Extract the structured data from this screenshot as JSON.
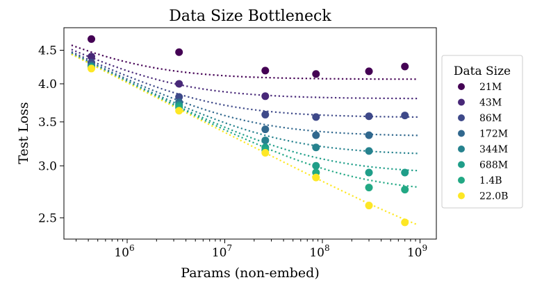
{
  "chart_data": {
    "type": "scatter",
    "title": "Data Size Bottleneck",
    "xlabel": "Params (non-embed)",
    "ylabel": "Test Loss",
    "x_scale": "log",
    "y_scale": "log",
    "xlim": [
      225000,
      1470000000
    ],
    "ylim": [
      2.32,
      4.87
    ],
    "x_ticks": [
      {
        "value": 1000000,
        "base": "10",
        "exp": "6"
      },
      {
        "value": 10000000,
        "base": "10",
        "exp": "7"
      },
      {
        "value": 100000000,
        "base": "10",
        "exp": "8"
      },
      {
        "value": 1000000000,
        "base": "10",
        "exp": "9"
      }
    ],
    "y_ticks": [
      {
        "value": 2.5,
        "label": "2.5"
      },
      {
        "value": 3.0,
        "label": "3.0"
      },
      {
        "value": 3.5,
        "label": "3.5"
      },
      {
        "value": 4.0,
        "label": "4.0"
      },
      {
        "value": 4.5,
        "label": "4.5"
      }
    ],
    "grid": false,
    "legend": {
      "title": "Data Size",
      "placement": "outside-right"
    },
    "x": [
      430000,
      3400000,
      26000000,
      86000000,
      300000000,
      700000000
    ],
    "series": [
      {
        "name": "21M",
        "color": "#440154",
        "values": [
          4.68,
          4.47,
          4.19,
          4.14,
          4.18,
          4.25
        ]
      },
      {
        "name": "43M",
        "color": "#482878",
        "values": [
          4.4,
          4.0,
          3.83,
          null,
          null,
          null
        ]
      },
      {
        "name": "86M",
        "color": "#3e4989",
        "values": [
          4.31,
          3.82,
          3.59,
          3.56,
          3.57,
          3.58
        ]
      },
      {
        "name": "172M",
        "color": "#31688e",
        "values": [
          4.27,
          3.75,
          3.41,
          3.34,
          3.34,
          null
        ]
      },
      {
        "name": "344M",
        "color": "#26828e",
        "values": [
          4.25,
          3.72,
          3.28,
          3.2,
          3.16,
          null
        ]
      },
      {
        "name": "688M",
        "color": "#1f9e89",
        "values": [
          4.24,
          3.7,
          3.2,
          3.0,
          2.93,
          2.93
        ]
      },
      {
        "name": "1.4B",
        "color": "#22a884",
        "values": [
          4.23,
          3.68,
          3.17,
          2.93,
          2.78,
          2.76
        ]
      },
      {
        "name": "22.0B",
        "color": "#fde725",
        "values": [
          4.22,
          3.64,
          3.14,
          2.88,
          2.61,
          2.46
        ]
      }
    ],
    "fit_lines": "dotted"
  }
}
